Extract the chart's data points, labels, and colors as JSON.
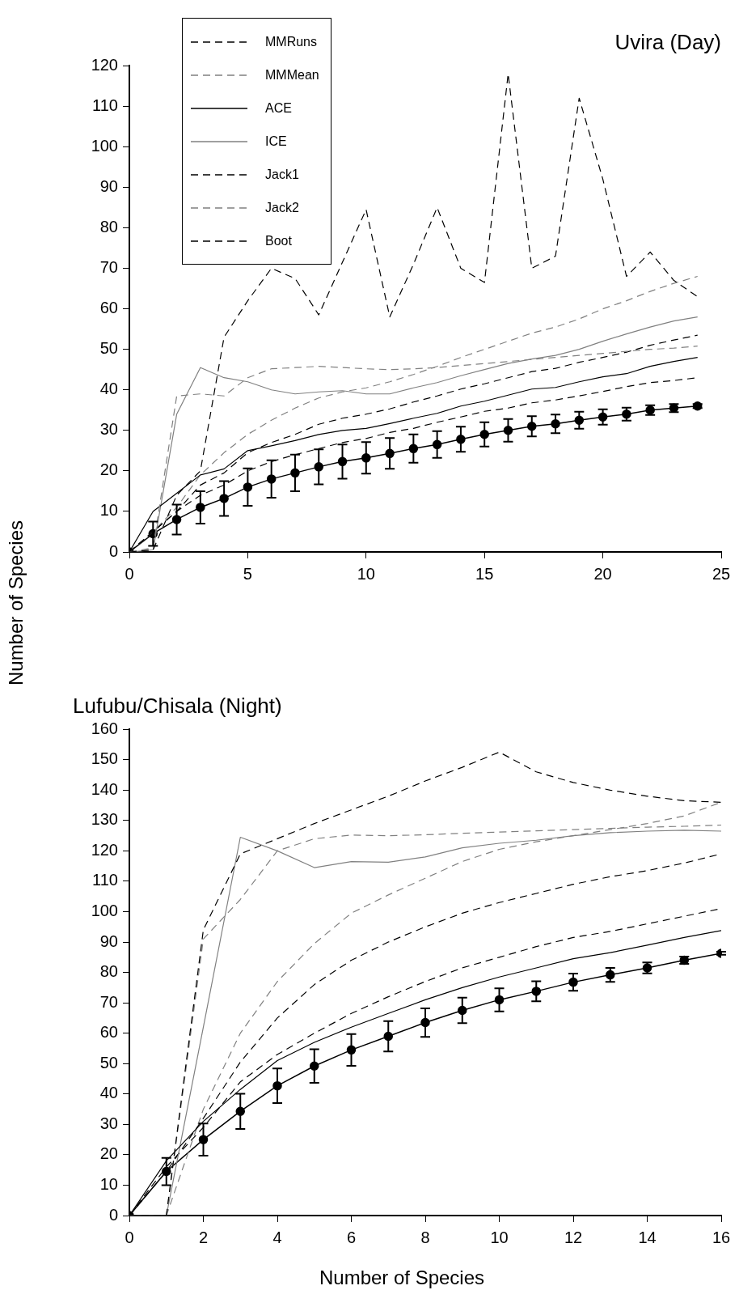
{
  "chart_data": [
    {
      "type": "line",
      "title": "Uvira (Day)",
      "ylabel": "Number of Species",
      "x": [
        0,
        1,
        2,
        3,
        4,
        5,
        6,
        7,
        8,
        9,
        10,
        11,
        12,
        13,
        14,
        15,
        16,
        17,
        18,
        19,
        20,
        21,
        22,
        23,
        24
      ],
      "xlim": [
        0,
        25
      ],
      "xticks": [
        0,
        5,
        10,
        15,
        20,
        25
      ],
      "ylim": [
        0,
        120
      ],
      "yticks": [
        0,
        10,
        20,
        30,
        40,
        50,
        60,
        70,
        80,
        90,
        100,
        110,
        120
      ],
      "grid": false,
      "legend": "top left",
      "marker": "none",
      "series": [
        {
          "name": "MMRuns",
          "color": "#000000",
          "line_style": "dashed",
          "values": [
            0,
            0.5,
            14,
            20,
            53,
            62,
            70,
            67.5,
            58.5,
            71.5,
            84.5,
            58,
            71,
            85,
            70,
            66.5,
            118,
            70,
            73,
            112,
            92,
            68,
            74,
            67,
            63
          ]
        },
        {
          "name": "MMMean",
          "color": "#808080",
          "line_style": "dashed",
          "values": [
            0,
            1,
            38.5,
            39,
            38.5,
            43,
            45.2,
            45.5,
            45.8,
            45.5,
            45.2,
            45,
            45.2,
            45.5,
            46,
            46.5,
            47,
            47.5,
            48,
            48.5,
            49,
            49.5,
            50,
            50.3,
            50.8
          ]
        },
        {
          "name": "ACE",
          "color": "#000000",
          "line_style": "solid",
          "values": [
            0,
            10,
            14.5,
            19,
            20.5,
            25,
            26.2,
            27.5,
            29,
            30,
            30.5,
            31.7,
            33,
            34.2,
            36,
            37.2,
            38.7,
            40.2,
            40.6,
            42,
            43.2,
            44,
            45.8,
            47,
            48
          ]
        },
        {
          "name": "ICE",
          "color": "#808080",
          "line_style": "solid",
          "values": [
            0,
            0.5,
            34,
            45.5,
            43,
            42,
            40,
            39,
            39.5,
            39.8,
            39,
            39,
            40.5,
            41.8,
            43.5,
            45,
            46.5,
            47.6,
            48.5,
            50,
            52,
            53.8,
            55.5,
            57,
            58
          ]
        },
        {
          "name": "Jack1",
          "color": "#000000",
          "line_style": "dashed",
          "values": [
            0,
            5,
            10,
            16.5,
            19.5,
            24.5,
            27,
            29,
            31.5,
            33,
            34,
            35.3,
            37,
            38.5,
            40.2,
            41.5,
            43,
            44.5,
            45.3,
            46.8,
            48,
            49.3,
            51,
            52.3,
            53.5
          ]
        },
        {
          "name": "Jack2",
          "color": "#808080",
          "line_style": "dashed",
          "values": [
            0,
            5,
            11,
            19,
            24.5,
            29,
            32.5,
            35.5,
            38,
            39.5,
            40.5,
            42,
            43.8,
            45.8,
            48,
            50,
            52,
            54,
            55.5,
            57.5,
            60,
            62,
            64.3,
            66.3,
            68
          ]
        },
        {
          "name": "Boot",
          "color": "#000000",
          "line_style": "dashed",
          "values": [
            0,
            5,
            10,
            14,
            16.5,
            20,
            22.3,
            24,
            25.5,
            27,
            28,
            29.5,
            30.5,
            32,
            33.3,
            34.7,
            35.5,
            36.8,
            37.5,
            38.5,
            39.6,
            40.8,
            41.8,
            42.3,
            43
          ]
        },
        {
          "color": "#000000",
          "line_style": "solid",
          "marker": "circle",
          "values": [
            0,
            4.5,
            8,
            11,
            13.2,
            16,
            18,
            19.5,
            21,
            22.3,
            23.2,
            24.3,
            25.5,
            26.5,
            27.8,
            29,
            30,
            31,
            31.6,
            32.5,
            33.3,
            34,
            35,
            35.5,
            36
          ],
          "errors": [
            null,
            3,
            3.7,
            4,
            4.3,
            4.6,
            4.6,
            4.5,
            4.3,
            4.2,
            3.9,
            3.8,
            3.5,
            3.3,
            3.1,
            3,
            2.8,
            2.5,
            2.3,
            2.1,
            1.9,
            1.6,
            1.2,
            1,
            0.5
          ]
        }
      ]
    },
    {
      "type": "line",
      "title": "Lufubu/Chisala (Night)",
      "xlabel": "Number of Species",
      "x": [
        0,
        1,
        2,
        3,
        4,
        5,
        6,
        7,
        8,
        9,
        10,
        11,
        12,
        13,
        14,
        15,
        16
      ],
      "xlim": [
        0,
        16
      ],
      "xticks": [
        0,
        2,
        4,
        6,
        8,
        10,
        12,
        14,
        16
      ],
      "ylim": [
        0,
        160
      ],
      "yticks": [
        0,
        10,
        20,
        30,
        40,
        50,
        60,
        70,
        80,
        90,
        100,
        110,
        120,
        130,
        140,
        150,
        160
      ],
      "grid": false,
      "legend": false,
      "marker": "none",
      "series": [
        {
          "color": "#000000",
          "line_style": "dashed",
          "values": [
            0,
            0,
            94,
            119,
            124,
            129,
            133.5,
            138,
            143,
            147.5,
            152.5,
            146,
            142.5,
            140,
            138,
            136.5,
            136
          ]
        },
        {
          "color": "#808080",
          "line_style": "dashed",
          "values": [
            0,
            0,
            91,
            104,
            120,
            124,
            125.2,
            125,
            125.3,
            125.8,
            126.2,
            126.6,
            127,
            127.4,
            127.8,
            128.1,
            128.5
          ]
        },
        {
          "color": "#000000",
          "line_style": "solid",
          "values": [
            0,
            18,
            31,
            41.5,
            51,
            57,
            62,
            66.5,
            71,
            75,
            78.5,
            81.5,
            84.5,
            86.5,
            89,
            91.5,
            93.8
          ]
        },
        {
          "color": "#808080",
          "line_style": "solid",
          "values": [
            0,
            0,
            62,
            124.5,
            120,
            114.5,
            116.5,
            116.3,
            118,
            121,
            122.5,
            123.5,
            125,
            126,
            126.5,
            126.8,
            126.5
          ]
        },
        {
          "color": "#000000",
          "line_style": "dashed",
          "values": [
            0,
            14.5,
            32,
            50.5,
            65,
            76,
            84,
            90,
            95,
            99.5,
            103,
            106,
            109,
            111.5,
            113.5,
            116,
            119
          ]
        },
        {
          "color": "#808080",
          "line_style": "dashed",
          "values": [
            0,
            0,
            35,
            60,
            77,
            89.5,
            99.5,
            105.5,
            111,
            116.5,
            120.5,
            123,
            125,
            127,
            129,
            131.5,
            136
          ]
        },
        {
          "color": "#000000",
          "line_style": "dashed",
          "values": [
            0,
            16,
            29,
            44,
            53,
            60,
            66.5,
            72,
            77,
            81.5,
            85,
            88.5,
            91.5,
            93.5,
            96,
            98.5,
            101
          ]
        },
        {
          "color": "#000000",
          "line_style": "solid",
          "marker": "circle",
          "values": [
            0,
            14.5,
            25,
            34.3,
            42.7,
            49.2,
            54.5,
            59,
            63.5,
            67.5,
            71,
            73.8,
            76.8,
            79.2,
            81.5,
            84,
            86.3
          ],
          "errors": [
            null,
            4.5,
            5.3,
            5.8,
            5.7,
            5.5,
            5.2,
            5,
            4.7,
            4.2,
            3.8,
            3.3,
            2.8,
            2.3,
            1.8,
            1.2,
            0.5
          ]
        }
      ]
    }
  ]
}
